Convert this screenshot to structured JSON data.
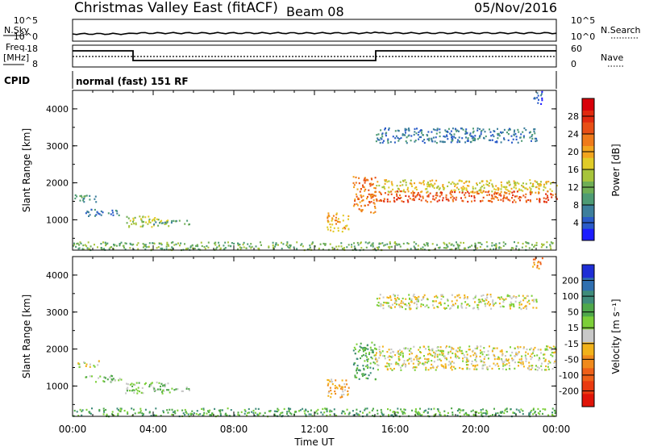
{
  "header": {
    "station": "Christmas Valley East (fitACF)",
    "beam": "Beam 08",
    "date": "05/Nov/2016"
  },
  "params": {
    "nsky_label": "N.Sky",
    "nsearch_label": "N.Search",
    "noise_tick_hi": "10^5",
    "noise_tick_lo": "10^0",
    "freq_label_1": "Freq.",
    "freq_label_2": "[MHz]",
    "freq_tick_hi": "18",
    "freq_tick_lo": "8",
    "nave_label": "Nave",
    "nave_tick_hi": "60",
    "nave_tick_lo": "0",
    "cpid_label": "CPID",
    "cpid_value": "normal (fast) 151 RF"
  },
  "chart_data": [
    {
      "type": "heatmap",
      "name": "power",
      "ylabel": "Slant Range [km]",
      "xlabel": "Time UT",
      "x_ticks": [
        "00:00",
        "04:00",
        "08:00",
        "12:00",
        "16:00",
        "20:00",
        "00:00"
      ],
      "y_ticks": [
        1000,
        2000,
        3000,
        4000
      ],
      "ylim": [
        180,
        4500
      ],
      "xlim_hours": [
        0,
        24
      ],
      "colorbar": {
        "label": "Power [dB]",
        "ticks": [
          "4",
          "8",
          "12",
          "16",
          "20",
          "24",
          "28"
        ],
        "colors": [
          "#1c1cff",
          "#2a5bc9",
          "#3d7f9c",
          "#4e9b74",
          "#6fae55",
          "#a7c43b",
          "#e0cc28",
          "#f2a51e",
          "#ef7a1a",
          "#e84f15",
          "#e22a0e",
          "#d8000a"
        ]
      },
      "echo_regions": [
        {
          "t": [
            0.0,
            1.2
          ],
          "r": [
            1500,
            1700
          ],
          "level": 3
        },
        {
          "t": [
            0.6,
            2.4
          ],
          "r": [
            1120,
            1300
          ],
          "level": 2
        },
        {
          "t": [
            2.6,
            4.8
          ],
          "r": [
            820,
            1120
          ],
          "level": 5
        },
        {
          "t": [
            4.0,
            5.8
          ],
          "r": [
            880,
            1000
          ],
          "level": 3
        },
        {
          "t": [
            0.0,
            24.0
          ],
          "r": [
            200,
            420
          ],
          "level": 4
        },
        {
          "t": [
            12.6,
            13.7
          ],
          "r": [
            700,
            1200
          ],
          "level": 7
        },
        {
          "t": [
            13.9,
            15.0
          ],
          "r": [
            1200,
            2200
          ],
          "level": 8
        },
        {
          "t": [
            15.0,
            24.0
          ],
          "r": [
            1750,
            2100
          ],
          "level": 6
        },
        {
          "t": [
            15.0,
            24.0
          ],
          "r": [
            1500,
            1800
          ],
          "level": 9
        },
        {
          "t": [
            15.0,
            23.0
          ],
          "r": [
            3100,
            3500
          ],
          "level": 2
        },
        {
          "t": [
            22.8,
            23.3
          ],
          "r": [
            4150,
            4500
          ],
          "level": 1
        }
      ]
    },
    {
      "type": "heatmap",
      "name": "velocity",
      "ylabel": "Slant Range [km]",
      "xlabel": "Time UT",
      "x_ticks": [
        "00:00",
        "04:00",
        "08:00",
        "12:00",
        "16:00",
        "20:00",
        "00:00"
      ],
      "y_ticks": [
        1000,
        2000,
        3000,
        4000
      ],
      "ylim": [
        180,
        4500
      ],
      "xlim_hours": [
        0,
        24
      ],
      "colorbar": {
        "label": "Velocity [m s⁻¹]",
        "ticks": [
          "200",
          "100",
          "50",
          "15",
          "-15",
          "-50",
          "-100",
          "-200"
        ],
        "colors": [
          "#1e2ed6",
          "#2f6fb0",
          "#3f8c7a",
          "#4fa84a",
          "#7ccf38",
          "#c8c8c8",
          "#f2b21a",
          "#f08a1c",
          "#ee6018",
          "#ea3a10",
          "#e01408"
        ]
      },
      "echo_regions": [
        {
          "t": [
            0.2,
            1.3
          ],
          "r": [
            1520,
            1700
          ],
          "level": 5
        },
        {
          "t": [
            0.6,
            2.4
          ],
          "r": [
            1120,
            1300
          ],
          "level": 4
        },
        {
          "t": [
            2.6,
            4.8
          ],
          "r": [
            820,
            1120
          ],
          "level": 4
        },
        {
          "t": [
            4.0,
            5.8
          ],
          "r": [
            880,
            1000
          ],
          "level": 4
        },
        {
          "t": [
            0.0,
            24.0
          ],
          "r": [
            200,
            420
          ],
          "level": 3
        },
        {
          "t": [
            12.6,
            13.7
          ],
          "r": [
            700,
            1200
          ],
          "level": 6
        },
        {
          "t": [
            13.9,
            15.0
          ],
          "r": [
            1200,
            2200
          ],
          "level": 3
        },
        {
          "t": [
            15.0,
            24.0
          ],
          "r": [
            1450,
            2100
          ],
          "level": 5
        },
        {
          "t": [
            15.0,
            23.0
          ],
          "r": [
            3100,
            3500
          ],
          "level": 5
        },
        {
          "t": [
            22.8,
            23.3
          ],
          "r": [
            4150,
            4500
          ],
          "level": 7
        }
      ]
    }
  ]
}
